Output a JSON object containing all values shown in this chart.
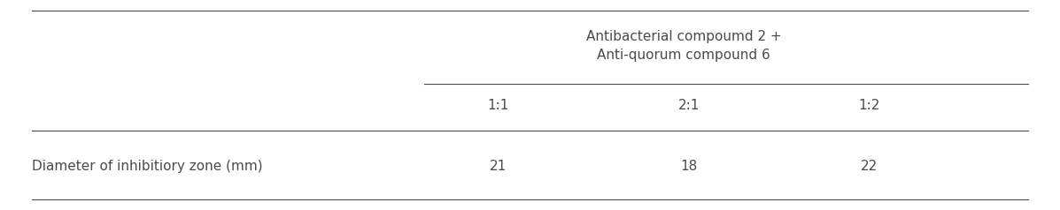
{
  "header_group": "Antibacterial compoumd 2 +\nAnti-quorum compound 6",
  "col_headers": [
    "1:1",
    "2:1",
    "1:2"
  ],
  "row_label": "Diameter of inhibitiory zone (mm)",
  "values": [
    "21",
    "18",
    "22"
  ],
  "bg_color": "#ffffff",
  "text_color": "#4a4a4a",
  "font_size": 11,
  "header_font_size": 11
}
